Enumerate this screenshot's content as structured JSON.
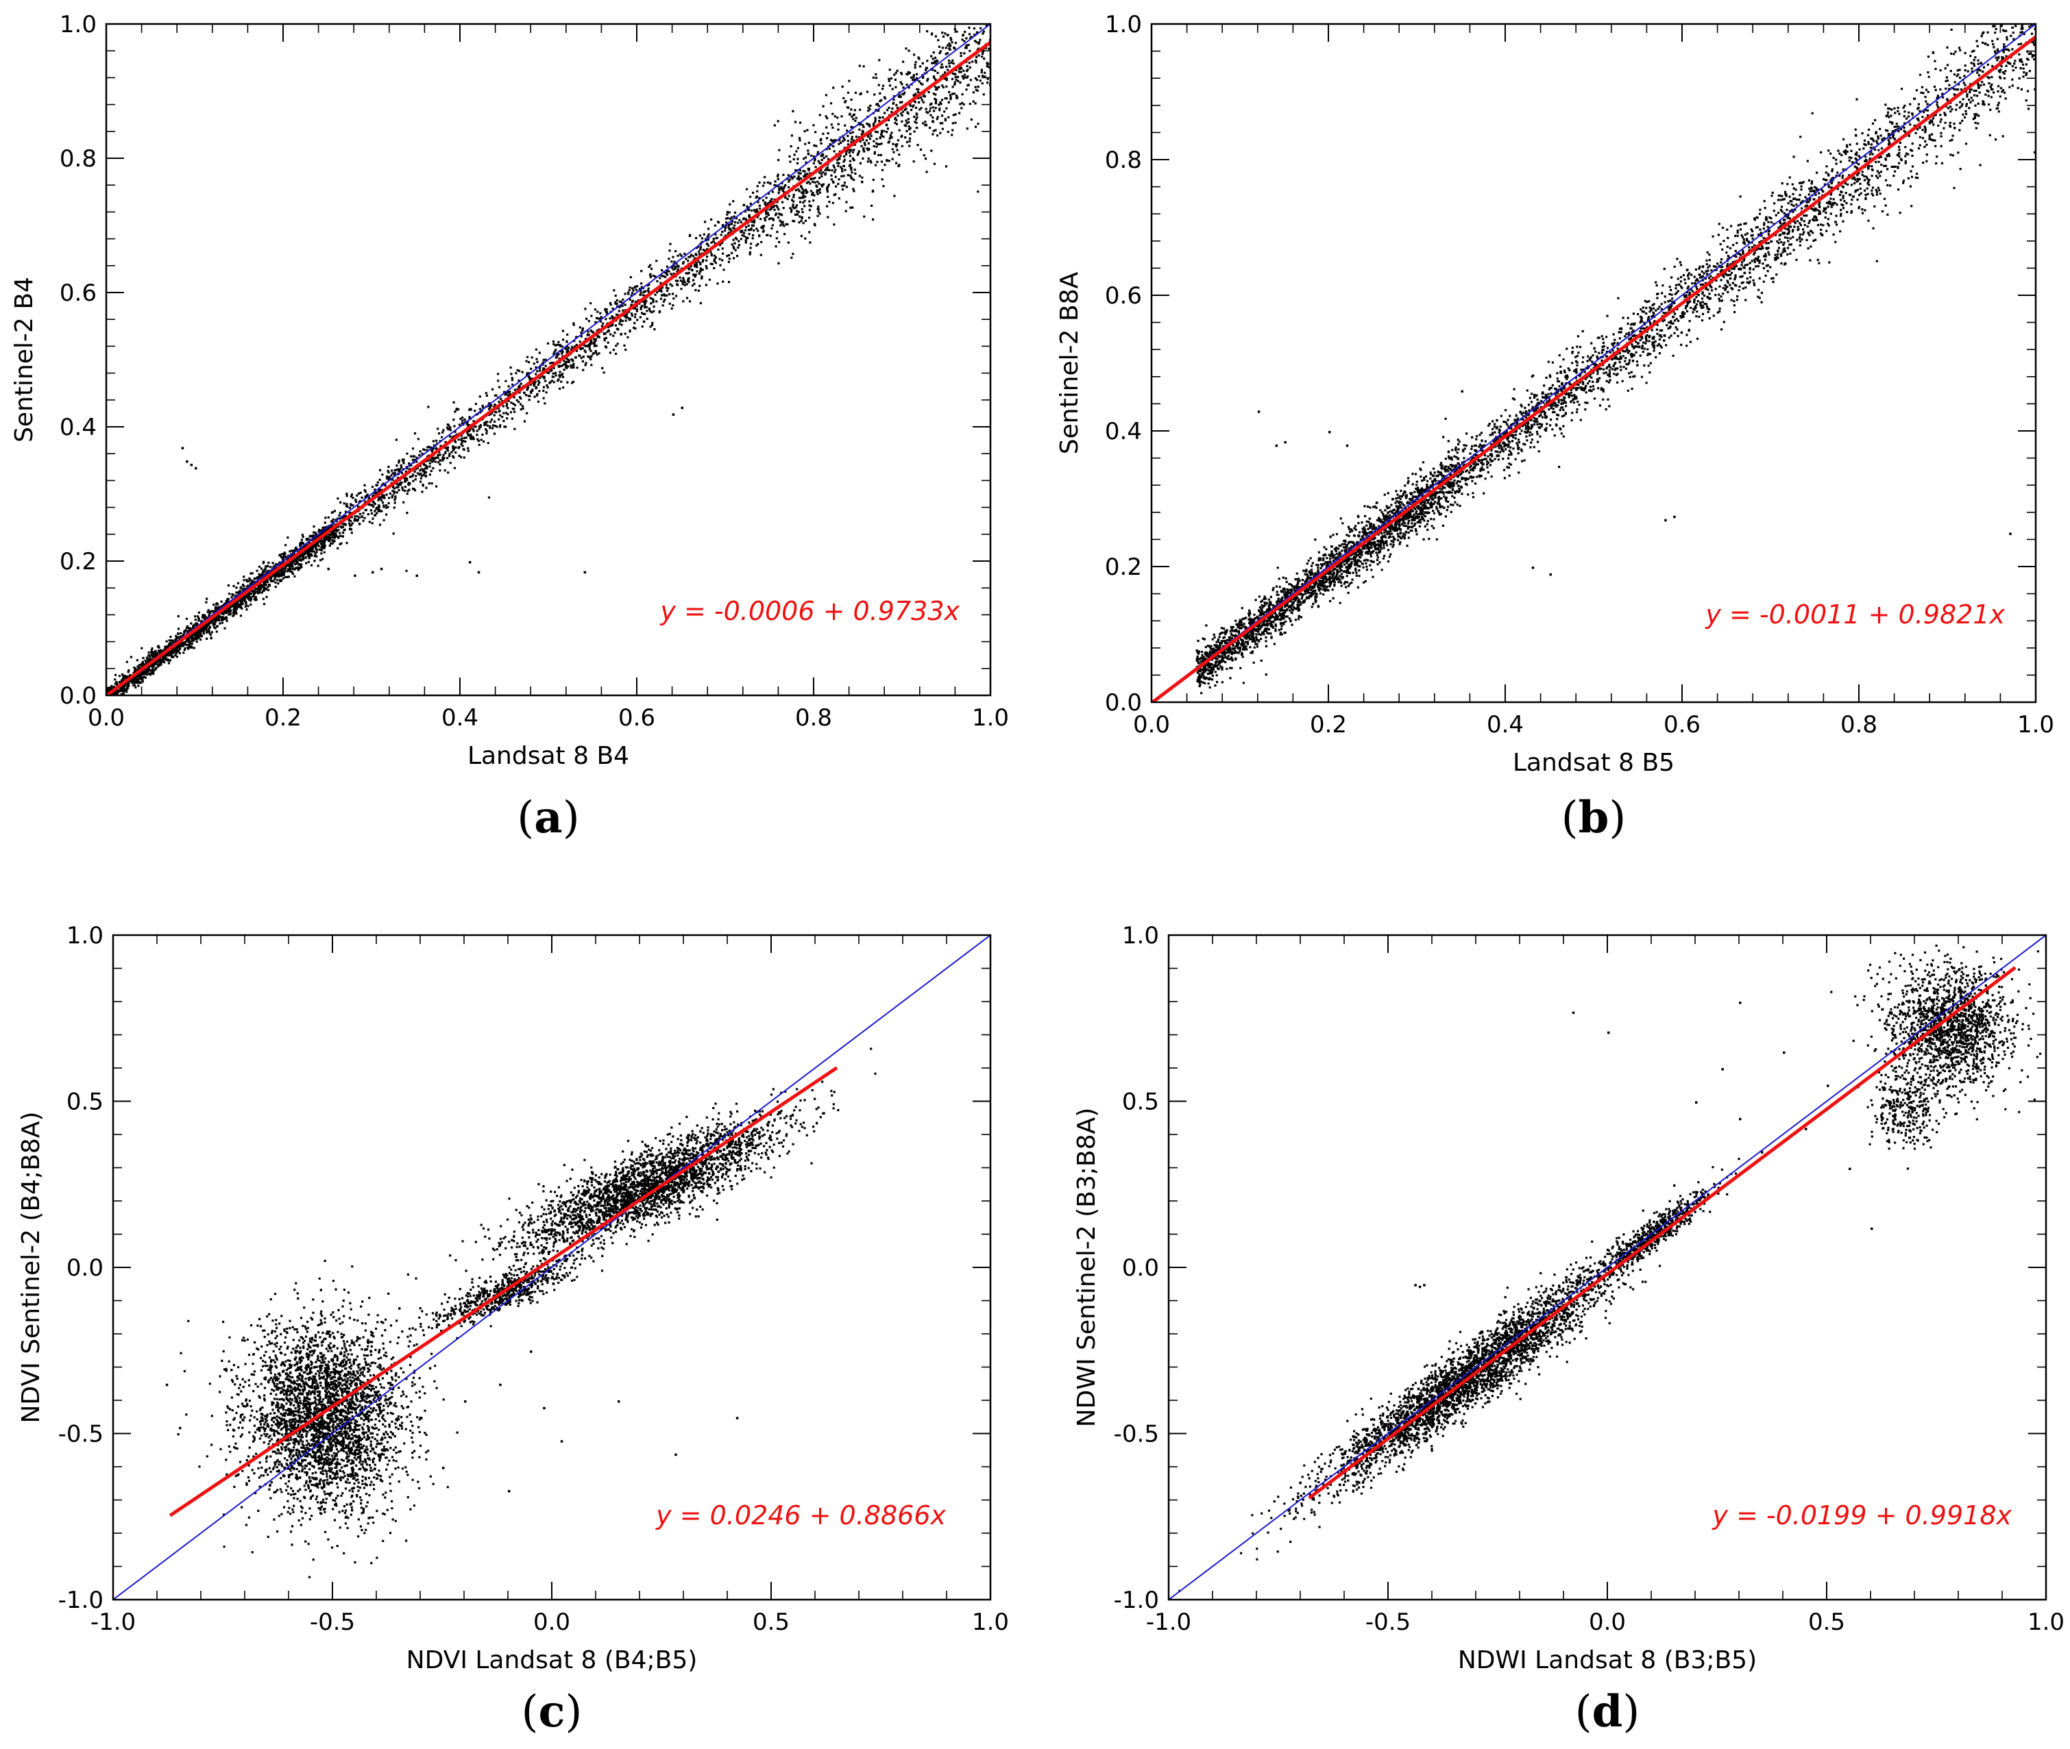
{
  "colors": {
    "points": "#000000",
    "fit_line": "#ee1111",
    "one_to_one_line": "#1a1acc",
    "equation": "#ee1111",
    "frame": "#000000"
  },
  "chart_data": [
    {
      "type": "scatter",
      "panel": "a",
      "panel_label": "(a)",
      "xlabel": "Landsat 8 B4",
      "ylabel": "Sentinel-2 B4",
      "xlim": [
        0.0,
        1.0
      ],
      "ylim": [
        0.0,
        1.0
      ],
      "x_ticks": [
        0.0,
        0.2,
        0.4,
        0.6,
        0.8,
        1.0
      ],
      "y_ticks": [
        0.0,
        0.2,
        0.4,
        0.6,
        0.8,
        1.0
      ],
      "x_tick_labels": [
        "0.0",
        "0.2",
        "0.4",
        "0.6",
        "0.8",
        "1.0"
      ],
      "y_tick_labels": [
        "0.0",
        "0.2",
        "0.4",
        "0.6",
        "0.8",
        "1.0"
      ],
      "fit": {
        "intercept": -0.0006,
        "slope": 0.9733,
        "x_range": [
          0.0,
          1.0
        ],
        "equation": "y = -0.0006 + 0.9733x"
      },
      "one_to_one": {
        "x_range": [
          0.0,
          1.0
        ]
      },
      "point_clusters": [
        {
          "x_range": [
            0.0,
            0.26
          ],
          "spread": 0.012,
          "count": 2200
        },
        {
          "x_range": [
            0.26,
            0.75
          ],
          "spread": 0.018,
          "count": 1700
        },
        {
          "x_range": [
            0.75,
            1.0
          ],
          "spread": 0.028,
          "count": 1100
        }
      ],
      "outliers": [
        [
          0.085,
          0.37
        ],
        [
          0.09,
          0.35
        ],
        [
          0.095,
          0.345
        ],
        [
          0.1,
          0.34
        ],
        [
          0.3,
          0.185
        ],
        [
          0.31,
          0.19
        ],
        [
          0.28,
          0.18
        ],
        [
          0.35,
          0.18
        ],
        [
          0.42,
          0.185
        ],
        [
          0.54,
          0.185
        ],
        [
          0.64,
          0.42
        ],
        [
          0.65,
          0.43
        ],
        [
          0.41,
          0.2
        ],
        [
          0.25,
          0.19
        ]
      ]
    },
    {
      "type": "scatter",
      "panel": "b",
      "panel_label": "(b)",
      "xlabel": "Landsat 8 B5",
      "ylabel": "Sentinel-2 B8A",
      "xlim": [
        0.0,
        1.0
      ],
      "ylim": [
        0.0,
        1.0
      ],
      "x_ticks": [
        0.0,
        0.2,
        0.4,
        0.6,
        0.8,
        1.0
      ],
      "y_ticks": [
        0.0,
        0.2,
        0.4,
        0.6,
        0.8,
        1.0
      ],
      "x_tick_labels": [
        "0.0",
        "0.2",
        "0.4",
        "0.6",
        "0.8",
        "1.0"
      ],
      "y_tick_labels": [
        "0.0",
        "0.2",
        "0.4",
        "0.6",
        "0.8",
        "1.0"
      ],
      "fit": {
        "intercept": -0.0011,
        "slope": 0.9821,
        "x_range": [
          0.0,
          1.0
        ],
        "equation": "y = -0.0011 + 0.9821x"
      },
      "one_to_one": {
        "x_range": [
          0.0,
          1.0
        ]
      },
      "point_clusters": [
        {
          "x_range": [
            0.05,
            0.35
          ],
          "spread": 0.022,
          "count": 2600
        },
        {
          "x_range": [
            0.35,
            0.75
          ],
          "spread": 0.022,
          "count": 1800
        },
        {
          "x_range": [
            0.75,
            1.0
          ],
          "spread": 0.025,
          "count": 900
        }
      ],
      "outliers": [
        [
          0.14,
          0.38
        ],
        [
          0.15,
          0.385
        ],
        [
          0.2,
          0.4
        ],
        [
          0.22,
          0.38
        ],
        [
          0.58,
          0.27
        ],
        [
          0.59,
          0.275
        ],
        [
          0.43,
          0.2
        ],
        [
          0.45,
          0.19
        ],
        [
          0.97,
          0.25
        ],
        [
          0.35,
          0.46
        ],
        [
          0.12,
          0.43
        ]
      ]
    },
    {
      "type": "scatter",
      "panel": "c",
      "panel_label": "(c)",
      "xlabel": "NDVI Landsat 8 (B4;B5)",
      "ylabel": "NDVI Sentinel-2 (B4;B8A)",
      "xlim": [
        -1.0,
        1.0
      ],
      "ylim": [
        -1.0,
        1.0
      ],
      "x_ticks": [
        -1.0,
        -0.5,
        0.0,
        0.5,
        1.0
      ],
      "y_ticks": [
        -1.0,
        -0.5,
        0.0,
        0.5,
        1.0
      ],
      "x_tick_labels": [
        "-1.0",
        "-0.5",
        "0.0",
        "0.5",
        "1.0"
      ],
      "y_tick_labels": [
        "-1.0",
        "-0.5",
        "0.0",
        "0.5",
        "1.0"
      ],
      "fit": {
        "intercept": 0.0246,
        "slope": 0.8866,
        "x_range": [
          -0.87,
          0.65
        ],
        "equation": "y = 0.0246 + 0.8866x"
      },
      "one_to_one": {
        "x_range": [
          -1.0,
          1.0
        ]
      },
      "blobs": [
        {
          "cx": -0.52,
          "cy": -0.45,
          "sx": 0.09,
          "sy": 0.14,
          "count": 3200
        },
        {
          "cx": 0.22,
          "cy": 0.25,
          "sx": 0.15,
          "sy": 0.1,
          "rho": 0.85,
          "count": 2600
        },
        {
          "cx": -0.12,
          "cy": -0.08,
          "sx": 0.08,
          "sy": 0.05,
          "rho": 0.85,
          "count": 600
        }
      ],
      "outliers": [
        [
          -0.28,
          -0.3
        ],
        [
          -0.3,
          -0.45
        ],
        [
          -0.25,
          -0.6
        ],
        [
          -0.2,
          -0.4
        ],
        [
          -0.12,
          -0.35
        ],
        [
          -0.02,
          -0.42
        ],
        [
          0.15,
          -0.4
        ],
        [
          0.28,
          -0.56
        ],
        [
          0.42,
          -0.45
        ],
        [
          -0.88,
          -0.35
        ],
        [
          -0.85,
          -0.48
        ],
        [
          -0.35,
          -0.12
        ],
        [
          -0.05,
          -0.25
        ],
        [
          0.02,
          -0.52
        ],
        [
          -0.1,
          -0.67
        ]
      ]
    },
    {
      "type": "scatter",
      "panel": "d",
      "panel_label": "(d)",
      "xlabel": "NDWI Landsat 8 (B3;B5)",
      "ylabel": "NDWI Sentinel-2 (B3;B8A)",
      "xlim": [
        -1.0,
        1.0
      ],
      "ylim": [
        -1.0,
        1.0
      ],
      "x_ticks": [
        -1.0,
        -0.5,
        0.0,
        0.5,
        1.0
      ],
      "y_ticks": [
        -1.0,
        -0.5,
        0.0,
        0.5,
        1.0
      ],
      "x_tick_labels": [
        "-1.0",
        "-0.5",
        "0.0",
        "0.5",
        "1.0"
      ],
      "y_tick_labels": [
        "-1.0",
        "-0.5",
        "0.0",
        "0.5",
        "1.0"
      ],
      "fit": {
        "intercept": -0.0199,
        "slope": 0.9918,
        "x_range": [
          -0.68,
          0.93
        ],
        "equation": "y = -0.0199 + 0.9918x"
      },
      "one_to_one": {
        "x_range": [
          -1.0,
          1.0
        ]
      },
      "blobs": [
        {
          "cx": -0.32,
          "cy": -0.33,
          "sx": 0.16,
          "sy": 0.16,
          "rho": 0.95,
          "count": 3200
        },
        {
          "cx": 0.1,
          "cy": 0.1,
          "sx": 0.07,
          "sy": 0.07,
          "rho": 0.95,
          "count": 600
        },
        {
          "cx": 0.78,
          "cy": 0.73,
          "sx": 0.07,
          "sy": 0.09,
          "count": 1500
        },
        {
          "cx": 0.68,
          "cy": 0.48,
          "sx": 0.04,
          "sy": 0.06,
          "count": 300
        }
      ],
      "outliers": [
        [
          -0.44,
          -0.05
        ],
        [
          -0.43,
          -0.055
        ],
        [
          -0.42,
          -0.05
        ],
        [
          0.0,
          0.71
        ],
        [
          -0.08,
          0.77
        ],
        [
          0.26,
          0.6
        ],
        [
          0.3,
          0.8
        ],
        [
          0.4,
          0.65
        ],
        [
          0.35,
          0.35
        ],
        [
          0.45,
          0.42
        ],
        [
          0.55,
          0.3
        ],
        [
          0.6,
          0.12
        ],
        [
          0.3,
          0.45
        ],
        [
          0.2,
          0.5
        ],
        [
          0.5,
          0.55
        ],
        [
          0.15,
          0.25
        ]
      ]
    }
  ]
}
